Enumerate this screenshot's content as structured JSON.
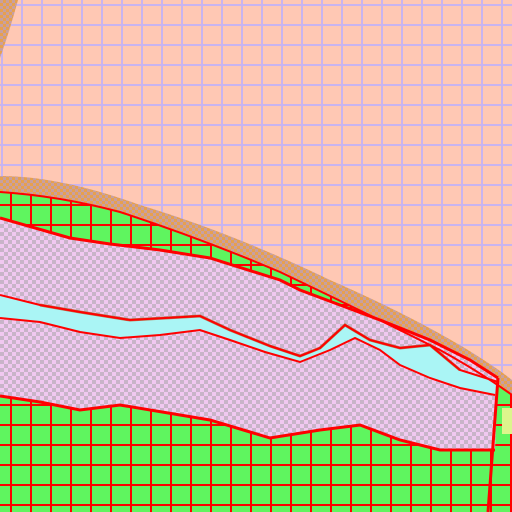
{
  "view": {
    "kind": "tile-map-closeup",
    "terrain_layers": [
      "peach-grid-field",
      "orange-bank",
      "pink-checker-band",
      "cyan-water-channel",
      "green-grid-field"
    ]
  },
  "colors": {
    "peach_fill": "#ffc8b4",
    "peach_grid": "#c8b4f0",
    "orange_bank": "#e6a050",
    "orange_checker": "#c8a0a0",
    "pink_fill": "#f0c8f0",
    "pink_checker": "#c8b4c8",
    "cyan_water": "#aaf5f5",
    "water_edge_brown": "#b47850",
    "green_fill": "#5ff55f",
    "red_border": "#ff0000",
    "yellow_green": "#dcf58c"
  }
}
